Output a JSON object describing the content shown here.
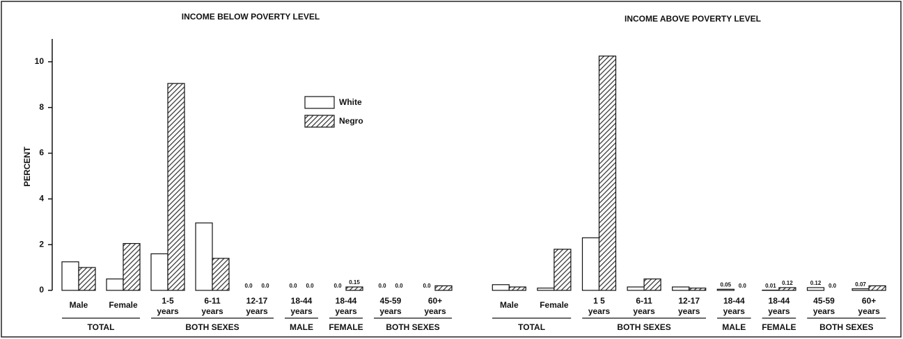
{
  "chart_data": {
    "type": "bar",
    "y_label": "PERCENT",
    "ylim": [
      0,
      11
    ],
    "yticks": [
      0,
      2,
      4,
      6,
      8,
      10
    ],
    "legend": "top-center",
    "series": [
      {
        "name": "White",
        "color": "#ffffff"
      },
      {
        "name": "Negro",
        "color": "#333333",
        "pattern": "hatch"
      }
    ],
    "panels": [
      {
        "title": "INCOME BELOW POVERTY LEVEL",
        "groups": [
          {
            "name": "TOTAL",
            "categories": [
              [
                "Male"
              ],
              [
                "Female"
              ]
            ]
          },
          {
            "name": "BOTH SEXES",
            "categories": [
              [
                "1-5",
                "years"
              ],
              [
                "6-11",
                "years"
              ],
              [
                "12-17",
                "years"
              ]
            ]
          },
          {
            "name": "MALE",
            "categories": [
              [
                "18-44",
                "years"
              ]
            ]
          },
          {
            "name": "FEMALE",
            "categories": [
              [
                "18-44",
                "years"
              ]
            ]
          },
          {
            "name": "BOTH SEXES",
            "categories": [
              [
                "45-59",
                "years"
              ],
              [
                "60+",
                "years"
              ]
            ]
          }
        ],
        "series": [
          {
            "values": [
              1.25,
              0.5,
              1.6,
              2.95,
              0,
              0,
              0,
              0,
              0
            ],
            "value_labels": [
              null,
              null,
              null,
              null,
              "0.0",
              "0.0",
              "0.0",
              "0.0",
              "0.0"
            ]
          },
          {
            "values": [
              1.0,
              2.05,
              9.05,
              1.4,
              0,
              0,
              0.15,
              0,
              0.2
            ],
            "value_labels": [
              null,
              null,
              null,
              null,
              "0.0",
              "0.0",
              "0.15",
              "0.0",
              null
            ]
          }
        ]
      },
      {
        "title": "INCOME ABOVE POVERTY LEVEL",
        "groups": [
          {
            "name": "TOTAL",
            "categories": [
              [
                "Male"
              ],
              [
                "Female"
              ]
            ]
          },
          {
            "name": "BOTH SEXES",
            "categories": [
              [
                "1 5",
                "years"
              ],
              [
                "6-11",
                "years"
              ],
              [
                "12-17",
                "years"
              ]
            ]
          },
          {
            "name": "MALE",
            "categories": [
              [
                "18-44",
                "years"
              ]
            ]
          },
          {
            "name": "FEMALE",
            "categories": [
              [
                "18-44",
                "years"
              ]
            ]
          },
          {
            "name": "BOTH SEXES",
            "categories": [
              [
                "45-59",
                "years"
              ],
              [
                "60+",
                "years"
              ]
            ]
          }
        ],
        "series": [
          {
            "values": [
              0.25,
              0.1,
              2.3,
              0.15,
              0.15,
              0.05,
              0.01,
              0.12,
              0.07
            ],
            "value_labels": [
              null,
              null,
              null,
              null,
              null,
              "0.05",
              "0.01",
              "0.12",
              "0.07"
            ]
          },
          {
            "values": [
              0.15,
              1.8,
              10.25,
              0.5,
              0.1,
              0,
              0.12,
              0,
              0.2
            ],
            "value_labels": [
              null,
              null,
              null,
              null,
              null,
              "0.0",
              "0.12",
              "0.0",
              null
            ]
          }
        ]
      }
    ]
  }
}
